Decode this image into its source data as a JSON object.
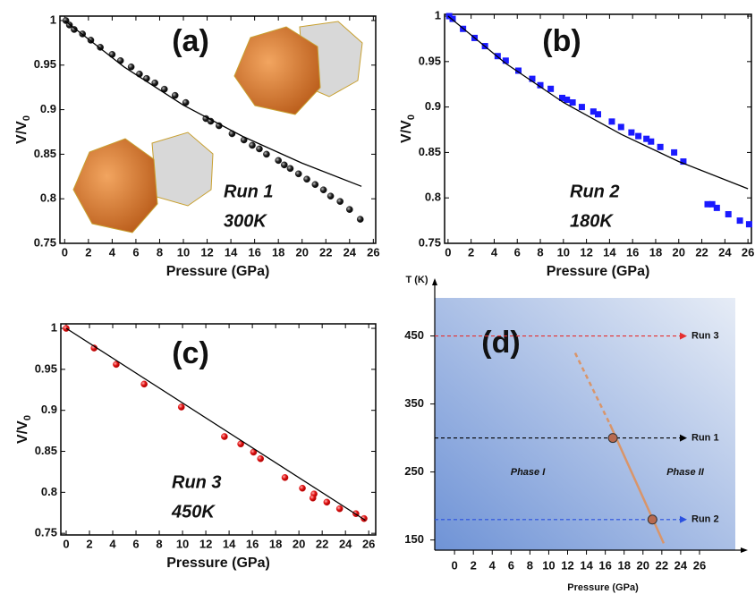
{
  "chart_data": [
    {
      "type": "scatter",
      "label": "(a)",
      "annotations": [
        "Run 1",
        "300K"
      ],
      "xlabel": "Pressure (GPa)",
      "ylabel": [
        "V/V",
        "0"
      ],
      "xlim": [
        -0.4,
        26.2
      ],
      "ylim": [
        0.75,
        1.005
      ],
      "xticks": [
        0,
        2,
        4,
        6,
        8,
        10,
        12,
        14,
        16,
        18,
        20,
        22,
        24,
        26
      ],
      "yticks": [
        0.75,
        0.8,
        0.85,
        0.9,
        0.95,
        1
      ],
      "series": [
        {
          "marker": "sphere",
          "color": "#111111",
          "x": [
            0.1,
            0.4,
            0.8,
            1.5,
            2.2,
            3,
            4,
            4.7,
            5.6,
            6.3,
            6.9,
            7.6,
            8.4,
            9.3,
            10.2,
            11.9,
            12.3,
            13,
            14.1,
            15.1,
            15.8,
            16.4,
            17,
            18,
            18.5,
            19,
            19.7,
            20.4,
            21.1,
            21.8,
            22.4,
            23.2,
            24,
            24.9
          ],
          "values": [
            1,
            0.995,
            0.99,
            0.985,
            0.978,
            0.97,
            0.962,
            0.955,
            0.948,
            0.94,
            0.935,
            0.93,
            0.923,
            0.916,
            0.908,
            0.89,
            0.887,
            0.882,
            0.873,
            0.866,
            0.86,
            0.856,
            0.85,
            0.843,
            0.838,
            0.834,
            0.828,
            0.822,
            0.816,
            0.81,
            0.803,
            0.797,
            0.788,
            0.777
          ]
        },
        {
          "marker": "line",
          "color": "#000000",
          "x": [
            0,
            5,
            10,
            15,
            20,
            25
          ],
          "values": [
            1,
            0.948,
            0.905,
            0.87,
            0.84,
            0.814
          ]
        }
      ]
    },
    {
      "type": "scatter",
      "label": "(b)",
      "annotations": [
        "Run 2",
        "180K"
      ],
      "xlabel": "Pressure (GPa)",
      "ylabel": [
        "V/V",
        "0"
      ],
      "xlim": [
        -0.3,
        26.3
      ],
      "ylim": [
        0.75,
        1.002
      ],
      "xticks": [
        0,
        2,
        4,
        6,
        8,
        10,
        12,
        14,
        16,
        18,
        20,
        22,
        24,
        26
      ],
      "yticks": [
        0.75,
        0.8,
        0.85,
        0.9,
        0.95,
        1
      ],
      "series": [
        {
          "marker": "square",
          "color": "#1a1aff",
          "x": [
            0.1,
            0.4,
            1.3,
            2.3,
            3.2,
            4.3,
            5,
            6.1,
            7.3,
            8,
            8.9,
            9.9,
            10.3,
            10.8,
            11.6,
            12.6,
            13,
            14.2,
            15,
            15.9,
            16.5,
            17.2,
            17.6,
            18.4,
            19.6,
            20.4,
            22.5,
            22.9,
            23.3,
            24.3,
            25.3,
            26.1
          ],
          "values": [
            1,
            0.997,
            0.986,
            0.976,
            0.967,
            0.956,
            0.951,
            0.94,
            0.931,
            0.924,
            0.92,
            0.91,
            0.908,
            0.905,
            0.9,
            0.895,
            0.892,
            0.884,
            0.878,
            0.872,
            0.868,
            0.865,
            0.862,
            0.856,
            0.85,
            0.84,
            0.793,
            0.793,
            0.789,
            0.782,
            0.775,
            0.771
          ]
        },
        {
          "marker": "line",
          "color": "#000000",
          "x": [
            0,
            5,
            10,
            15,
            20,
            26
          ],
          "values": [
            1,
            0.948,
            0.905,
            0.87,
            0.84,
            0.81
          ]
        }
      ]
    },
    {
      "type": "scatter",
      "label": "(c)",
      "annotations": [
        "Run 3",
        "450K"
      ],
      "xlabel": "Pressure (GPa)",
      "ylabel": [
        "V/V",
        "0"
      ],
      "xlim": [
        -0.46,
        26.6
      ],
      "ylim": [
        0.748,
        1.0055
      ],
      "xticks": [
        0,
        2,
        4,
        6,
        8,
        10,
        12,
        14,
        16,
        18,
        20,
        22,
        24,
        26
      ],
      "yticks": [
        0.75,
        0.8,
        0.85,
        0.9,
        0.95,
        1
      ],
      "series": [
        {
          "marker": "dot",
          "color": "#e01010",
          "x": [
            0,
            2.4,
            4.3,
            6.7,
            9.9,
            13.6,
            15,
            16.1,
            16.7,
            18.8,
            20.3,
            21.3,
            21.2,
            22.4,
            23.5,
            24.9,
            25.6
          ],
          "values": [
            1,
            0.976,
            0.956,
            0.932,
            0.904,
            0.868,
            0.859,
            0.849,
            0.841,
            0.818,
            0.805,
            0.798,
            0.793,
            0.788,
            0.78,
            0.774,
            0.768
          ]
        },
        {
          "marker": "line",
          "color": "#000000",
          "x": [
            0,
            25.7
          ],
          "values": [
            1,
            0.766
          ]
        }
      ]
    },
    {
      "type": "phase",
      "label": "(d)",
      "xlabel": "Pressure (GPa)",
      "ylabel": "T (K)",
      "xlim": [
        -2.1,
        29.8
      ],
      "ylim": [
        135,
        506
      ],
      "xticks": [
        0,
        2,
        4,
        6,
        8,
        10,
        12,
        14,
        16,
        18,
        20,
        22,
        24,
        26
      ],
      "yticks": [
        150,
        250,
        350,
        450
      ],
      "regions": [
        "Phase I",
        "Phase II"
      ],
      "runs": [
        {
          "name": "Run 3",
          "color": "#e53030",
          "T": 450
        },
        {
          "name": "Run 1",
          "color": "#000000",
          "T": 300
        },
        {
          "name": "Run 2",
          "color": "#2a50e0",
          "T": 180
        }
      ],
      "boundary": {
        "color": "#d9956a",
        "p": [
          12.8,
          16.5,
          22.2
        ],
        "T": [
          425,
          320,
          145
        ]
      },
      "transitions": {
        "p": [
          16.8,
          21
        ],
        "T": [
          300,
          180
        ]
      }
    }
  ]
}
